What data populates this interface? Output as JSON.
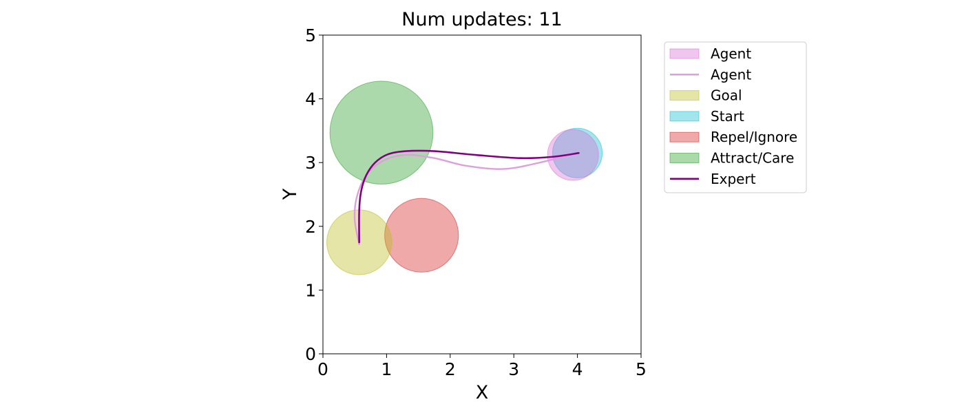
{
  "chart_data": {
    "type": "scatter",
    "title": "Num updates: 11",
    "xlabel": "X",
    "ylabel": "Y",
    "xlim": [
      0,
      5
    ],
    "ylim": [
      0,
      5
    ],
    "xticks": [
      "0",
      "1",
      "2",
      "3",
      "4",
      "5"
    ],
    "yticks": [
      "0",
      "1",
      "2",
      "3",
      "4",
      "5"
    ],
    "grid": false,
    "legend_position": "outside-right-top",
    "circles": [
      {
        "label": "Attract/Care",
        "cx": 0.92,
        "cy": 3.47,
        "r": 0.81,
        "color": "#2ca02c"
      },
      {
        "label": "Repel/Ignore",
        "cx": 1.55,
        "cy": 1.86,
        "r": 0.58,
        "color": "#d62728"
      },
      {
        "label": "Goal",
        "cx": 0.57,
        "cy": 1.75,
        "r": 0.51,
        "color": "#bcbd22"
      },
      {
        "label": "Start",
        "cx": 4.0,
        "cy": 3.15,
        "r": 0.39,
        "color": "#17becf"
      },
      {
        "label": "Agent",
        "cx": 3.93,
        "cy": 3.12,
        "r": 0.4,
        "color": "#da70d6"
      }
    ],
    "series": [
      {
        "name": "Agent",
        "color": "#dda0dd",
        "x": [
          0.57,
          0.5,
          0.53,
          0.68,
          0.95,
          1.3,
          1.75,
          2.25,
          2.85,
          3.45,
          3.85
        ],
        "y": [
          1.72,
          2.1,
          2.45,
          2.8,
          3.03,
          3.12,
          3.07,
          2.95,
          2.9,
          3.01,
          3.12
        ]
      },
      {
        "name": "Expert",
        "color": "#800080",
        "x": [
          0.57,
          0.57,
          0.6,
          0.68,
          0.82,
          1.02,
          1.3,
          1.75,
          2.4,
          3.1,
          3.6,
          4.02
        ],
        "y": [
          1.75,
          2.25,
          2.55,
          2.8,
          3.0,
          3.13,
          3.18,
          3.18,
          3.12,
          3.07,
          3.09,
          3.15
        ]
      }
    ],
    "legend": [
      {
        "label": "Agent",
        "kind": "patch",
        "color": "#da70d6"
      },
      {
        "label": "Agent",
        "kind": "line",
        "color": "#dda0dd"
      },
      {
        "label": "Goal",
        "kind": "patch",
        "color": "#bcbd22"
      },
      {
        "label": "Start",
        "kind": "patch",
        "color": "#17becf"
      },
      {
        "label": "Repel/Ignore",
        "kind": "patch",
        "color": "#d62728"
      },
      {
        "label": "Attract/Care",
        "kind": "patch",
        "color": "#2ca02c"
      },
      {
        "label": "Expert",
        "kind": "line",
        "color": "#800080"
      }
    ]
  }
}
